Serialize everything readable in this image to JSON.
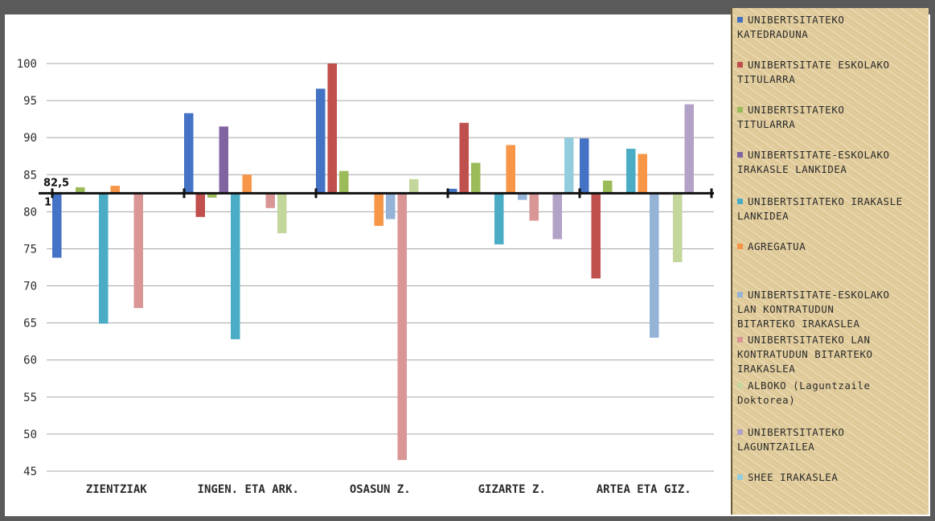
{
  "chart_data": {
    "type": "bar",
    "baseline_label": "82,5",
    "baseline_label_sub": "1",
    "baseline": 82.5,
    "ylim": [
      45,
      104
    ],
    "yticks": [
      45,
      50,
      55,
      60,
      65,
      70,
      75,
      80,
      85,
      90,
      95,
      100
    ],
    "grid": true,
    "legend_position": "right",
    "categories": [
      "ZIENTZIAK",
      "INGEN. ETA ARK.",
      "OSASUN Z.",
      "GIZARTE Z.",
      "ARTEA ETA GIZ."
    ],
    "series": [
      {
        "name": "UNIBERTSITATEKO KATEDRADUNA",
        "color": "#4472c4",
        "values": [
          73.8,
          93.3,
          96.6,
          83.1,
          89.9
        ]
      },
      {
        "name": "UNIBERTSITATE ESKOLAKO TITULARRA",
        "color": "#c0504d",
        "values": [
          null,
          79.3,
          100.0,
          92.0,
          71.0
        ]
      },
      {
        "name": "UNIBERTSITATEKO TITULARRA",
        "color": "#9bbb59",
        "values": [
          83.3,
          81.9,
          85.5,
          86.6,
          84.2
        ]
      },
      {
        "name": "UNIBERTSITATE-ESKOLAKO IRAKASLE LANKIDEA",
        "color": "#8064a2",
        "values": [
          null,
          91.5,
          null,
          null,
          null
        ]
      },
      {
        "name": "UNIBERTSITATEKO IRAKASLE LANKIDEA",
        "color": "#4bacc6",
        "values": [
          64.9,
          62.8,
          null,
          75.6,
          88.5
        ]
      },
      {
        "name": "AGREGATUA",
        "color": "#f79646",
        "values": [
          83.5,
          85.0,
          78.1,
          89.0,
          87.8
        ]
      },
      {
        "name": "UNIBERTSITATE-ESKOLAKO LAN KONTRATUDUN BITARTEKO IRAKASLEA",
        "color": "#95b3d7",
        "values": [
          null,
          null,
          79.0,
          81.6,
          63.0
        ]
      },
      {
        "name": "UNIBERTSITATEKO LAN KONTRATUDUN BITARTEKO IRAKASLEA",
        "color": "#d99694",
        "values": [
          67.0,
          80.5,
          46.5,
          78.8,
          82.3
        ]
      },
      {
        "name": "ALBOKO (Laguntzaile Doktorea)",
        "color": "#c3d69b",
        "values": [
          null,
          77.1,
          84.4,
          null,
          73.2
        ]
      },
      {
        "name": "UNIBERTSITATEKO LAGUNTZAILEA",
        "color": "#b2a2c7",
        "values": [
          null,
          null,
          null,
          76.3,
          94.5
        ]
      },
      {
        "name": "SHEE IRAKASLEA",
        "color": "#93cddd",
        "values": [
          null,
          null,
          null,
          90.0,
          null
        ]
      }
    ]
  },
  "legend": {
    "items": [
      {
        "label": "UNIBERTSITATEKO\nKATEDRADUNA",
        "color": "#4472c4"
      },
      {
        "label": "UNIBERTSITATE ESKOLAKO\nTITULARRA",
        "color": "#c0504d"
      },
      {
        "label": "UNIBERTSITATEKO\nTITULARRA",
        "color": "#9bbb59"
      },
      {
        "label": "UNIBERTSITATE-ESKOLAKO\nIRAKASLE LANKIDEA",
        "color": "#8064a2"
      },
      {
        "label": "UNIBERTSITATEKO IRAKASLE\nLANKIDEA",
        "color": "#4bacc6"
      },
      {
        "label": "AGREGATUA",
        "color": "#f79646"
      },
      {
        "label": "UNIBERTSITATE-ESKOLAKO\nLAN KONTRATUDUN\nBITARTEKO IRAKASLEA",
        "color": "#95b3d7"
      },
      {
        "label": "UNIBERTSITATEKO LAN\nKONTRATUDUN BITARTEKO\nIRAKASLEA",
        "color": "#d99694"
      },
      {
        "label": "ALBOKO (Laguntzaile\nDoktorea)",
        "color": "#c3d69b"
      },
      {
        "label": "UNIBERTSITATEKO\nLAGUNTZAILEA",
        "color": "#b2a2c7"
      },
      {
        "label": "SHEE IRAKASLEA",
        "color": "#93cddd"
      }
    ]
  }
}
